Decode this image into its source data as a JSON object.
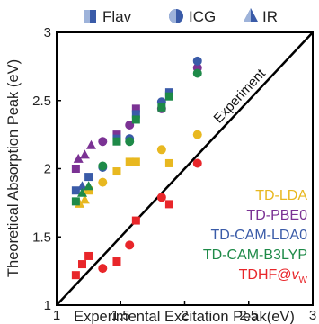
{
  "chart_data": {
    "type": "scatter",
    "xlabel": "Experimental Excitation Peak(eV)",
    "ylabel": "Theoretical Absorption Peak (eV)",
    "xlim": [
      1,
      3
    ],
    "ylim": [
      1,
      3
    ],
    "xticks": [
      "1",
      "1.5",
      "2",
      "2.5",
      "3"
    ],
    "yticks": [
      "1",
      "1.5",
      "2",
      "2.5",
      "3"
    ],
    "grid": false,
    "diagonal_label": "Experiment",
    "marker_legend": {
      "position": "top",
      "items": [
        {
          "label": "Flav",
          "marker": "half-filled-square"
        },
        {
          "label": "ICG",
          "marker": "half-filled-circle"
        },
        {
          "label": "IR",
          "marker": "half-filled-triangle"
        }
      ]
    },
    "method_legend": {
      "position": "bottom-right",
      "items": [
        {
          "label": "TD-LDA",
          "color": "#E8B820"
        },
        {
          "label": "TD-PBE0",
          "color": "#7B3294"
        },
        {
          "label": "TD-CAM-LDA0",
          "color": "#3A5BA8"
        },
        {
          "label": "TD-CAM-B3LYP",
          "color": "#1E8A48"
        },
        {
          "label": "TDHF@",
          "label_symbol": "v",
          "label_subscript": "W",
          "color": "#E8262A"
        }
      ]
    },
    "series": [
      {
        "name": "TD-LDA",
        "color": "#E8B820",
        "points": [
          [
            1.18,
            1.74,
            "tri"
          ],
          [
            1.22,
            1.77,
            "tri"
          ],
          [
            1.25,
            1.84,
            "sq"
          ],
          [
            1.36,
            1.9,
            "circ"
          ],
          [
            1.47,
            1.98,
            "sq"
          ],
          [
            1.57,
            2.05,
            "sq"
          ],
          [
            1.62,
            2.05,
            "sq"
          ],
          [
            1.82,
            2.14,
            "circ"
          ],
          [
            1.88,
            2.04,
            "sq"
          ],
          [
            2.1,
            2.25,
            "circ"
          ]
        ]
      },
      {
        "name": "TD-PBE0",
        "color": "#7B3294",
        "points": [
          [
            1.17,
            2.07,
            "tri"
          ],
          [
            1.22,
            2.1,
            "tri"
          ],
          [
            1.27,
            2.17,
            "tri"
          ],
          [
            1.15,
            2.0,
            "sq"
          ],
          [
            1.36,
            2.2,
            "circ"
          ],
          [
            1.47,
            2.25,
            "sq"
          ],
          [
            1.57,
            2.32,
            "circ"
          ],
          [
            1.62,
            2.44,
            "sq"
          ],
          [
            1.82,
            2.44,
            "circ"
          ],
          [
            1.88,
            2.54,
            "sq"
          ],
          [
            2.1,
            2.74,
            "circ"
          ]
        ]
      },
      {
        "name": "TD-CAM-LDA0",
        "color": "#3A5BA8",
        "points": [
          [
            1.15,
            1.84,
            "sq"
          ],
          [
            1.2,
            1.87,
            "tri"
          ],
          [
            1.25,
            1.94,
            "sq"
          ],
          [
            1.36,
            2.01,
            "circ"
          ],
          [
            1.47,
            2.22,
            "sq"
          ],
          [
            1.57,
            2.22,
            "circ"
          ],
          [
            1.62,
            2.4,
            "sq"
          ],
          [
            1.82,
            2.49,
            "circ"
          ],
          [
            1.88,
            2.56,
            "sq"
          ],
          [
            2.1,
            2.79,
            "circ"
          ]
        ]
      },
      {
        "name": "TD-CAM-B3LYP",
        "color": "#1E8A48",
        "points": [
          [
            1.15,
            1.76,
            "sq"
          ],
          [
            1.2,
            1.82,
            "tri"
          ],
          [
            1.25,
            1.87,
            "tri"
          ],
          [
            1.36,
            2.02,
            "circ"
          ],
          [
            1.47,
            2.2,
            "sq"
          ],
          [
            1.57,
            2.2,
            "circ"
          ],
          [
            1.62,
            2.36,
            "sq"
          ],
          [
            1.82,
            2.45,
            "sq"
          ],
          [
            1.88,
            2.53,
            "sq"
          ],
          [
            2.1,
            2.7,
            "circ"
          ]
        ]
      },
      {
        "name": "TDHF@vW",
        "color": "#E8262A",
        "points": [
          [
            1.15,
            1.22,
            "sq"
          ],
          [
            1.2,
            1.3,
            "sq"
          ],
          [
            1.25,
            1.36,
            "sq"
          ],
          [
            1.36,
            1.27,
            "circ"
          ],
          [
            1.47,
            1.32,
            "sq"
          ],
          [
            1.57,
            1.44,
            "circ"
          ],
          [
            1.62,
            1.62,
            "sq"
          ],
          [
            1.82,
            1.79,
            "circ"
          ],
          [
            1.88,
            1.74,
            "sq"
          ],
          [
            2.1,
            2.04,
            "circ"
          ]
        ]
      }
    ]
  }
}
